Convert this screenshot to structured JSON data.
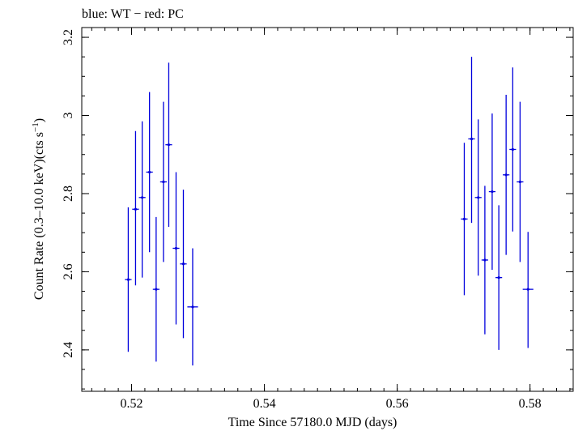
{
  "chart_data": {
    "type": "scatter",
    "title": "blue: WT − red: PC",
    "xlabel": "Time Since 57180.0 MJD (days)",
    "ylabel_main": "Count Rate (0.3–10.0 keV)(cts s",
    "ylabel_sup": "−1",
    "ylabel_end": ")",
    "xlim": [
      0.5125,
      0.5865
    ],
    "ylim": [
      2.294,
      3.225
    ],
    "x_ticks": [
      {
        "value": 0.52,
        "label": "0.52"
      },
      {
        "value": 0.54,
        "label": "0.54"
      },
      {
        "value": 0.56,
        "label": "0.56"
      },
      {
        "value": 0.58,
        "label": "0.58"
      }
    ],
    "y_ticks": [
      {
        "value": 2.4,
        "label": "2.4"
      },
      {
        "value": 2.6,
        "label": "2.6"
      },
      {
        "value": 2.8,
        "label": "2.8"
      },
      {
        "value": 3.0,
        "label": "3"
      },
      {
        "value": 3.2,
        "label": "3.2"
      }
    ],
    "x_minor_step": 0.002,
    "y_minor_step": 0.05,
    "grid": false,
    "series": [
      {
        "color": "#0000dd",
        "points": [
          {
            "x": 0.5195,
            "xerr": 0.0005,
            "y": 2.58,
            "yerr_lo": 0.185,
            "yerr_hi": 0.185
          },
          {
            "x": 0.5206,
            "xerr": 0.0005,
            "y": 2.76,
            "yerr_lo": 0.195,
            "yerr_hi": 0.2
          },
          {
            "x": 0.5216,
            "xerr": 0.0005,
            "y": 2.79,
            "yerr_lo": 0.205,
            "yerr_hi": 0.195
          },
          {
            "x": 0.5227,
            "xerr": 0.0005,
            "y": 2.855,
            "yerr_lo": 0.205,
            "yerr_hi": 0.205
          },
          {
            "x": 0.5237,
            "xerr": 0.0005,
            "y": 2.555,
            "yerr_lo": 0.185,
            "yerr_hi": 0.185
          },
          {
            "x": 0.5248,
            "xerr": 0.0005,
            "y": 2.83,
            "yerr_lo": 0.205,
            "yerr_hi": 0.205
          },
          {
            "x": 0.5256,
            "xerr": 0.0005,
            "y": 2.925,
            "yerr_lo": 0.21,
            "yerr_hi": 0.21
          },
          {
            "x": 0.5267,
            "xerr": 0.0005,
            "y": 2.66,
            "yerr_lo": 0.195,
            "yerr_hi": 0.195
          },
          {
            "x": 0.5278,
            "xerr": 0.0005,
            "y": 2.62,
            "yerr_lo": 0.19,
            "yerr_hi": 0.19
          },
          {
            "x": 0.5292,
            "xerr": 0.0008,
            "y": 2.51,
            "yerr_lo": 0.15,
            "yerr_hi": 0.15
          },
          {
            "x": 0.5701,
            "xerr": 0.0005,
            "y": 2.735,
            "yerr_lo": 0.195,
            "yerr_hi": 0.195
          },
          {
            "x": 0.5712,
            "xerr": 0.0005,
            "y": 2.94,
            "yerr_lo": 0.215,
            "yerr_hi": 0.21
          },
          {
            "x": 0.5722,
            "xerr": 0.0005,
            "y": 2.79,
            "yerr_lo": 0.2,
            "yerr_hi": 0.2
          },
          {
            "x": 0.5732,
            "xerr": 0.0005,
            "y": 2.63,
            "yerr_lo": 0.19,
            "yerr_hi": 0.19
          },
          {
            "x": 0.5743,
            "xerr": 0.0005,
            "y": 2.805,
            "yerr_lo": 0.2,
            "yerr_hi": 0.2
          },
          {
            "x": 0.5753,
            "xerr": 0.0005,
            "y": 2.585,
            "yerr_lo": 0.185,
            "yerr_hi": 0.185
          },
          {
            "x": 0.5764,
            "xerr": 0.0005,
            "y": 2.848,
            "yerr_lo": 0.205,
            "yerr_hi": 0.205
          },
          {
            "x": 0.5774,
            "xerr": 0.0005,
            "y": 2.913,
            "yerr_lo": 0.21,
            "yerr_hi": 0.21
          },
          {
            "x": 0.5785,
            "xerr": 0.0005,
            "y": 2.83,
            "yerr_lo": 0.205,
            "yerr_hi": 0.205
          },
          {
            "x": 0.5797,
            "xerr": 0.0008,
            "y": 2.555,
            "yerr_lo": 0.15,
            "yerr_hi": 0.147
          }
        ]
      }
    ]
  }
}
